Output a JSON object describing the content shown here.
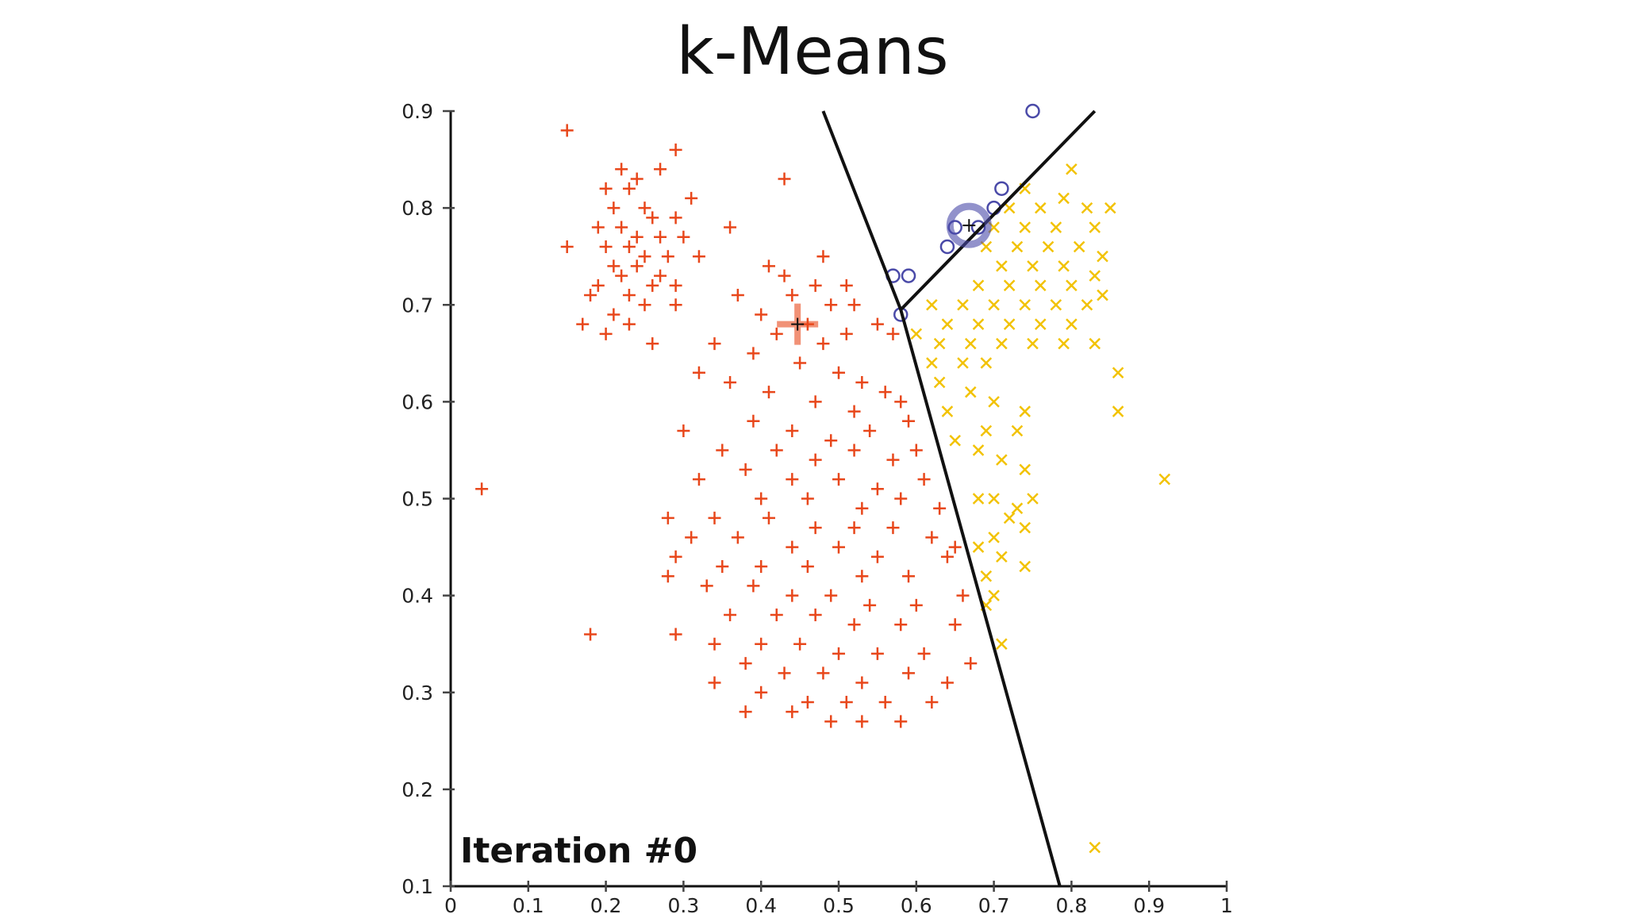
{
  "title": "k-Means",
  "chart_data": {
    "type": "scatter",
    "title": "",
    "xlabel": "",
    "ylabel": "",
    "xlim": [
      0,
      1
    ],
    "ylim": [
      0.1,
      0.9
    ],
    "x_ticks": [
      "0",
      "0.1",
      "0.2",
      "0.3",
      "0.4",
      "0.5",
      "0.6",
      "0.7",
      "0.8",
      "0.9",
      "1"
    ],
    "y_ticks": [
      "0.1",
      "0.2",
      "0.3",
      "0.4",
      "0.5",
      "0.6",
      "0.7",
      "0.8",
      "0.9"
    ],
    "grid": false,
    "annotation": "Iteration #0",
    "boundaries": [
      [
        [
          0.48,
          0.9
        ],
        [
          0.58,
          0.695
        ]
      ],
      [
        [
          0.58,
          0.695
        ],
        [
          0.83,
          0.9
        ]
      ],
      [
        [
          0.58,
          0.695
        ],
        [
          0.785,
          0.1
        ]
      ]
    ],
    "centroids": [
      {
        "series": "red",
        "x": 0.447,
        "y": 0.68
      },
      {
        "series": "blue",
        "x": 0.668,
        "y": 0.782
      }
    ],
    "series": [
      {
        "marker": "plus",
        "color": "#e8471b",
        "points": [
          [
            0.15,
            0.88
          ],
          [
            0.29,
            0.86
          ],
          [
            0.22,
            0.84
          ],
          [
            0.27,
            0.84
          ],
          [
            0.24,
            0.83
          ],
          [
            0.43,
            0.83
          ],
          [
            0.2,
            0.82
          ],
          [
            0.23,
            0.82
          ],
          [
            0.31,
            0.81
          ],
          [
            0.21,
            0.8
          ],
          [
            0.25,
            0.8
          ],
          [
            0.26,
            0.79
          ],
          [
            0.29,
            0.79
          ],
          [
            0.36,
            0.78
          ],
          [
            0.19,
            0.78
          ],
          [
            0.22,
            0.78
          ],
          [
            0.24,
            0.77
          ],
          [
            0.27,
            0.77
          ],
          [
            0.3,
            0.77
          ],
          [
            0.2,
            0.76
          ],
          [
            0.23,
            0.76
          ],
          [
            0.25,
            0.75
          ],
          [
            0.28,
            0.75
          ],
          [
            0.32,
            0.75
          ],
          [
            0.15,
            0.76
          ],
          [
            0.21,
            0.74
          ],
          [
            0.24,
            0.74
          ],
          [
            0.27,
            0.73
          ],
          [
            0.22,
            0.73
          ],
          [
            0.19,
            0.72
          ],
          [
            0.26,
            0.72
          ],
          [
            0.29,
            0.72
          ],
          [
            0.23,
            0.71
          ],
          [
            0.18,
            0.71
          ],
          [
            0.25,
            0.7
          ],
          [
            0.29,
            0.7
          ],
          [
            0.21,
            0.69
          ],
          [
            0.17,
            0.68
          ],
          [
            0.23,
            0.68
          ],
          [
            0.26,
            0.66
          ],
          [
            0.2,
            0.67
          ],
          [
            0.41,
            0.74
          ],
          [
            0.48,
            0.75
          ],
          [
            0.43,
            0.73
          ],
          [
            0.47,
            0.72
          ],
          [
            0.51,
            0.72
          ],
          [
            0.37,
            0.71
          ],
          [
            0.44,
            0.71
          ],
          [
            0.49,
            0.7
          ],
          [
            0.52,
            0.7
          ],
          [
            0.4,
            0.69
          ],
          [
            0.46,
            0.68
          ],
          [
            0.42,
            0.67
          ],
          [
            0.48,
            0.66
          ],
          [
            0.51,
            0.67
          ],
          [
            0.55,
            0.68
          ],
          [
            0.57,
            0.67
          ],
          [
            0.34,
            0.66
          ],
          [
            0.39,
            0.65
          ],
          [
            0.45,
            0.64
          ],
          [
            0.5,
            0.63
          ],
          [
            0.53,
            0.62
          ],
          [
            0.56,
            0.61
          ],
          [
            0.32,
            0.63
          ],
          [
            0.36,
            0.62
          ],
          [
            0.41,
            0.61
          ],
          [
            0.47,
            0.6
          ],
          [
            0.52,
            0.59
          ],
          [
            0.58,
            0.6
          ],
          [
            0.59,
            0.58
          ],
          [
            0.39,
            0.58
          ],
          [
            0.44,
            0.57
          ],
          [
            0.49,
            0.56
          ],
          [
            0.54,
            0.57
          ],
          [
            0.3,
            0.57
          ],
          [
            0.35,
            0.55
          ],
          [
            0.42,
            0.55
          ],
          [
            0.47,
            0.54
          ],
          [
            0.52,
            0.55
          ],
          [
            0.57,
            0.54
          ],
          [
            0.6,
            0.55
          ],
          [
            0.38,
            0.53
          ],
          [
            0.44,
            0.52
          ],
          [
            0.5,
            0.52
          ],
          [
            0.55,
            0.51
          ],
          [
            0.61,
            0.52
          ],
          [
            0.32,
            0.52
          ],
          [
            0.4,
            0.5
          ],
          [
            0.46,
            0.5
          ],
          [
            0.53,
            0.49
          ],
          [
            0.58,
            0.5
          ],
          [
            0.63,
            0.49
          ],
          [
            0.28,
            0.48
          ],
          [
            0.34,
            0.48
          ],
          [
            0.41,
            0.48
          ],
          [
            0.47,
            0.47
          ],
          [
            0.52,
            0.47
          ],
          [
            0.57,
            0.47
          ],
          [
            0.62,
            0.46
          ],
          [
            0.31,
            0.46
          ],
          [
            0.37,
            0.46
          ],
          [
            0.44,
            0.45
          ],
          [
            0.5,
            0.45
          ],
          [
            0.55,
            0.44
          ],
          [
            0.64,
            0.44
          ],
          [
            0.29,
            0.44
          ],
          [
            0.35,
            0.43
          ],
          [
            0.4,
            0.43
          ],
          [
            0.46,
            0.43
          ],
          [
            0.53,
            0.42
          ],
          [
            0.59,
            0.42
          ],
          [
            0.65,
            0.45
          ],
          [
            0.28,
            0.42
          ],
          [
            0.33,
            0.41
          ],
          [
            0.39,
            0.41
          ],
          [
            0.44,
            0.4
          ],
          [
            0.49,
            0.4
          ],
          [
            0.54,
            0.39
          ],
          [
            0.6,
            0.39
          ],
          [
            0.66,
            0.4
          ],
          [
            0.36,
            0.38
          ],
          [
            0.42,
            0.38
          ],
          [
            0.47,
            0.38
          ],
          [
            0.52,
            0.37
          ],
          [
            0.58,
            0.37
          ],
          [
            0.65,
            0.37
          ],
          [
            0.29,
            0.36
          ],
          [
            0.34,
            0.35
          ],
          [
            0.4,
            0.35
          ],
          [
            0.45,
            0.35
          ],
          [
            0.5,
            0.34
          ],
          [
            0.55,
            0.34
          ],
          [
            0.61,
            0.34
          ],
          [
            0.67,
            0.33
          ],
          [
            0.38,
            0.33
          ],
          [
            0.43,
            0.32
          ],
          [
            0.48,
            0.32
          ],
          [
            0.53,
            0.31
          ],
          [
            0.59,
            0.32
          ],
          [
            0.64,
            0.31
          ],
          [
            0.34,
            0.31
          ],
          [
            0.4,
            0.3
          ],
          [
            0.46,
            0.29
          ],
          [
            0.51,
            0.29
          ],
          [
            0.56,
            0.29
          ],
          [
            0.62,
            0.29
          ],
          [
            0.38,
            0.28
          ],
          [
            0.44,
            0.28
          ],
          [
            0.49,
            0.27
          ],
          [
            0.53,
            0.27
          ],
          [
            0.58,
            0.27
          ],
          [
            0.04,
            0.51
          ],
          [
            0.18,
            0.36
          ]
        ]
      },
      {
        "marker": "x",
        "color": "#f2c200",
        "points": [
          [
            0.8,
            0.84
          ],
          [
            0.74,
            0.82
          ],
          [
            0.79,
            0.81
          ],
          [
            0.72,
            0.8
          ],
          [
            0.76,
            0.8
          ],
          [
            0.82,
            0.8
          ],
          [
            0.85,
            0.8
          ],
          [
            0.7,
            0.78
          ],
          [
            0.74,
            0.78
          ],
          [
            0.78,
            0.78
          ],
          [
            0.83,
            0.78
          ],
          [
            0.69,
            0.76
          ],
          [
            0.73,
            0.76
          ],
          [
            0.77,
            0.76
          ],
          [
            0.81,
            0.76
          ],
          [
            0.84,
            0.75
          ],
          [
            0.71,
            0.74
          ],
          [
            0.75,
            0.74
          ],
          [
            0.79,
            0.74
          ],
          [
            0.83,
            0.73
          ],
          [
            0.68,
            0.72
          ],
          [
            0.72,
            0.72
          ],
          [
            0.76,
            0.72
          ],
          [
            0.8,
            0.72
          ],
          [
            0.84,
            0.71
          ],
          [
            0.62,
            0.7
          ],
          [
            0.66,
            0.7
          ],
          [
            0.7,
            0.7
          ],
          [
            0.74,
            0.7
          ],
          [
            0.78,
            0.7
          ],
          [
            0.82,
            0.7
          ],
          [
            0.64,
            0.68
          ],
          [
            0.68,
            0.68
          ],
          [
            0.72,
            0.68
          ],
          [
            0.76,
            0.68
          ],
          [
            0.8,
            0.68
          ],
          [
            0.6,
            0.67
          ],
          [
            0.63,
            0.66
          ],
          [
            0.67,
            0.66
          ],
          [
            0.71,
            0.66
          ],
          [
            0.75,
            0.66
          ],
          [
            0.79,
            0.66
          ],
          [
            0.83,
            0.66
          ],
          [
            0.62,
            0.64
          ],
          [
            0.66,
            0.64
          ],
          [
            0.69,
            0.64
          ],
          [
            0.86,
            0.63
          ],
          [
            0.63,
            0.62
          ],
          [
            0.67,
            0.61
          ],
          [
            0.7,
            0.6
          ],
          [
            0.74,
            0.59
          ],
          [
            0.86,
            0.59
          ],
          [
            0.64,
            0.59
          ],
          [
            0.69,
            0.57
          ],
          [
            0.73,
            0.57
          ],
          [
            0.65,
            0.56
          ],
          [
            0.68,
            0.55
          ],
          [
            0.71,
            0.54
          ],
          [
            0.74,
            0.53
          ],
          [
            0.92,
            0.52
          ],
          [
            0.68,
            0.5
          ],
          [
            0.7,
            0.5
          ],
          [
            0.73,
            0.49
          ],
          [
            0.75,
            0.5
          ],
          [
            0.72,
            0.48
          ],
          [
            0.74,
            0.47
          ],
          [
            0.7,
            0.46
          ],
          [
            0.68,
            0.45
          ],
          [
            0.71,
            0.44
          ],
          [
            0.74,
            0.43
          ],
          [
            0.69,
            0.42
          ],
          [
            0.7,
            0.4
          ],
          [
            0.69,
            0.39
          ],
          [
            0.71,
            0.35
          ],
          [
            0.83,
            0.14
          ]
        ]
      },
      {
        "marker": "circle",
        "color": "#4a4aa8",
        "points": [
          [
            0.75,
            0.9
          ],
          [
            0.71,
            0.82
          ],
          [
            0.7,
            0.8
          ],
          [
            0.68,
            0.78
          ],
          [
            0.65,
            0.78
          ],
          [
            0.64,
            0.76
          ],
          [
            0.57,
            0.73
          ],
          [
            0.59,
            0.73
          ],
          [
            0.58,
            0.69
          ]
        ]
      }
    ]
  }
}
